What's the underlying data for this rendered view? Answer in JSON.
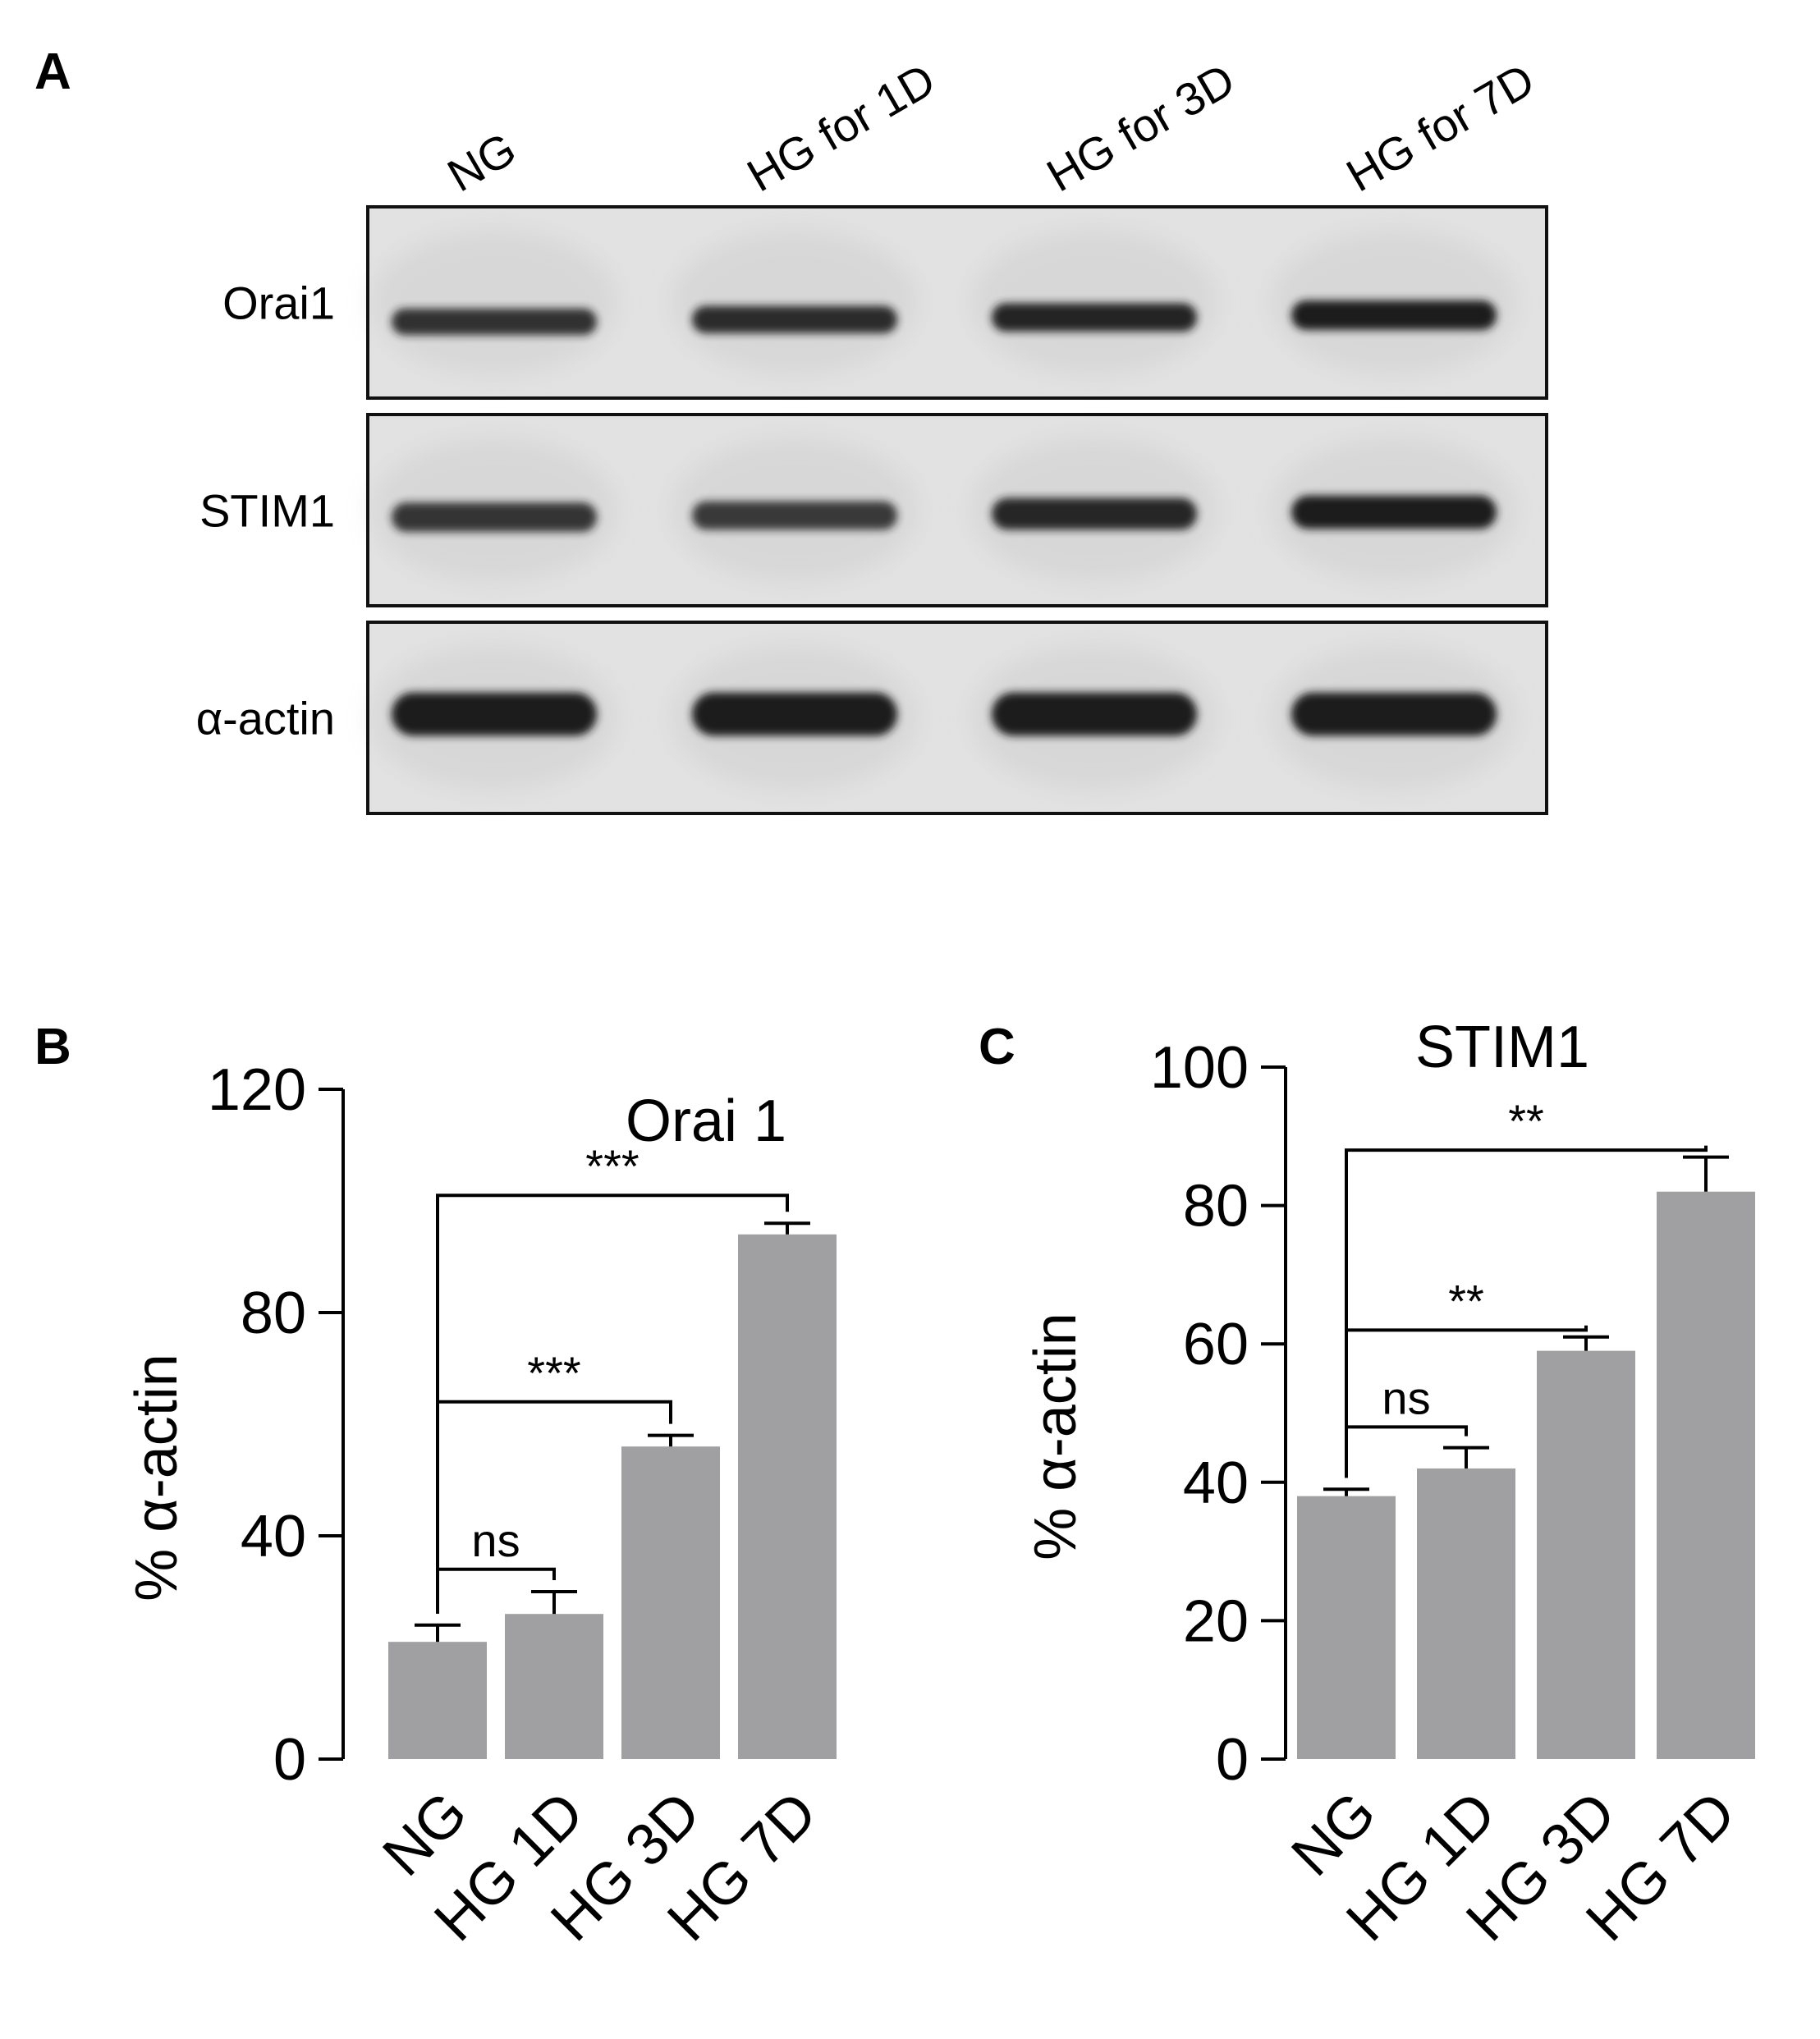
{
  "panels": {
    "a": {
      "letter": "A"
    },
    "b": {
      "letter": "B"
    },
    "c": {
      "letter": "C"
    }
  },
  "blot": {
    "lanes": [
      "NG",
      "HG for  1D",
      "HG for  3D",
      "HG for  7D"
    ],
    "rows": [
      {
        "label": "Orai1",
        "band_intensity": [
          0.75,
          0.82,
          0.9,
          1.0
        ]
      },
      {
        "label": "STIM1",
        "band_intensity": [
          0.7,
          0.65,
          0.88,
          1.0
        ]
      },
      {
        "label": "α-actin",
        "band_intensity": [
          1.0,
          1.0,
          1.0,
          1.0
        ]
      }
    ],
    "colors": {
      "frame": "#111111",
      "membrane": "#e2e2e2",
      "band": "#1a1a1a"
    }
  },
  "chart_data": [
    {
      "type": "bar",
      "title": "Orai 1",
      "ylabel": "% α-actin",
      "categories": [
        "NG",
        "HG 1D",
        "HG 3D",
        "HG 7D"
      ],
      "values": [
        21,
        26,
        56,
        94
      ],
      "errors": [
        3,
        4,
        2,
        2
      ],
      "ylim": [
        0,
        120
      ],
      "yticks": [
        0,
        40,
        80,
        120
      ],
      "bar_color": "#a0a0a2",
      "comparisons": [
        {
          "from": 0,
          "to": 1,
          "label": "ns"
        },
        {
          "from": 0,
          "to": 2,
          "label": "***"
        },
        {
          "from": 0,
          "to": 3,
          "label": "***"
        }
      ]
    },
    {
      "type": "bar",
      "title": "STIM1",
      "ylabel": "% α-actin",
      "categories": [
        "NG",
        "HG 1D",
        "HG 3D",
        "HG 7D"
      ],
      "values": [
        38,
        42,
        59,
        82
      ],
      "errors": [
        1,
        3,
        2,
        5
      ],
      "ylim": [
        0,
        100
      ],
      "yticks": [
        0,
        20,
        40,
        60,
        80,
        100
      ],
      "bar_color": "#a0a0a2",
      "comparisons": [
        {
          "from": 0,
          "to": 1,
          "label": "ns"
        },
        {
          "from": 0,
          "to": 2,
          "label": "**"
        },
        {
          "from": 0,
          "to": 3,
          "label": "**"
        }
      ]
    }
  ]
}
